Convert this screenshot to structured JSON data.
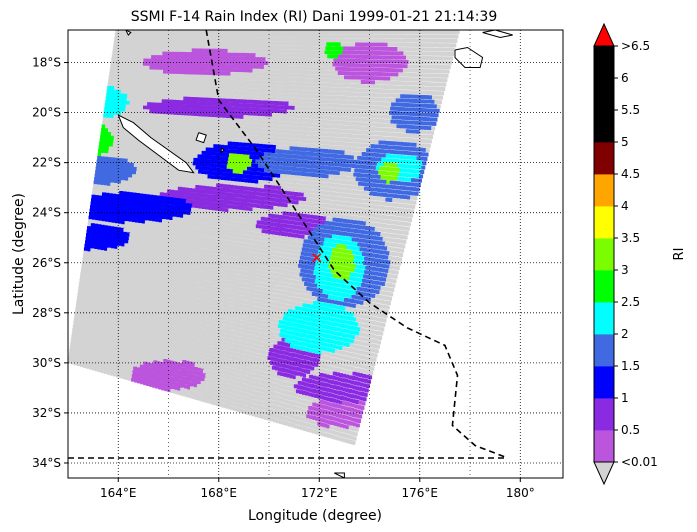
{
  "chart_data": {
    "type": "heatmap",
    "title": "SSMI F-14 Rain Index (RI) Dani 1999-01-21 21:14:39",
    "xlabel": "Longitude (degree)",
    "ylabel": "Latitude (degree)",
    "xlim": [
      162.0,
      181.7
    ],
    "ylim": [
      -34.6,
      -16.7
    ],
    "x_ticks": [
      {
        "value": 164,
        "label": "164°E"
      },
      {
        "value": 168,
        "label": "168°E"
      },
      {
        "value": 172,
        "label": "172°E"
      },
      {
        "value": 176,
        "label": "176°E"
      },
      {
        "value": 180,
        "label": "180°"
      }
    ],
    "y_ticks": [
      {
        "value": -18,
        "label": "18°S"
      },
      {
        "value": -20,
        "label": "20°S"
      },
      {
        "value": -22,
        "label": "22°S"
      },
      {
        "value": -24,
        "label": "24°S"
      },
      {
        "value": -26,
        "label": "26°S"
      },
      {
        "value": -28,
        "label": "28°S"
      },
      {
        "value": -30,
        "label": "30°S"
      },
      {
        "value": -32,
        "label": "32°S"
      },
      {
        "value": -34,
        "label": "34°S"
      }
    ],
    "grid": "dotted",
    "swath": {
      "corners": [
        [
          163.9,
          -16.7
        ],
        [
          177.6,
          -16.7
        ],
        [
          173.4,
          -33.3
        ],
        [
          162.0,
          -30.0
        ]
      ],
      "background_value": "<0.01"
    },
    "rain_regions": [
      {
        "center": [
          163.6,
          -19.6
        ],
        "radius": [
          0.8,
          0.6
        ],
        "level": 2.25
      },
      {
        "center": [
          162.9,
          -21.1
        ],
        "radius": [
          0.9,
          0.7
        ],
        "level": 2.75
      },
      {
        "center": [
          163.2,
          -22.3
        ],
        "radius": [
          1.5,
          0.6
        ],
        "level": 1.75
      },
      {
        "center": [
          164.5,
          -23.8
        ],
        "radius": [
          2.5,
          0.6
        ],
        "level": 1.25
      },
      {
        "center": [
          163.0,
          -25.0
        ],
        "radius": [
          1.5,
          0.5
        ],
        "level": 1.25
      },
      {
        "center": [
          169.0,
          -22.0
        ],
        "radius": [
          2.0,
          0.8
        ],
        "level": 1.25
      },
      {
        "center": [
          168.8,
          -22.0
        ],
        "radius": [
          0.5,
          0.4
        ],
        "level": 3.25
      },
      {
        "center": [
          171.5,
          -22.0
        ],
        "radius": [
          2.0,
          0.6
        ],
        "level": 1.75
      },
      {
        "center": [
          173.0,
          -26.0
        ],
        "radius": [
          1.8,
          1.8
        ],
        "level": 1.75
      },
      {
        "center": [
          172.8,
          -26.2
        ],
        "radius": [
          1.0,
          1.3
        ],
        "level": 2.25
      },
      {
        "center": [
          172.9,
          -26.0
        ],
        "radius": [
          0.5,
          0.7
        ],
        "level": 3.25
      },
      {
        "center": [
          172.0,
          -28.6
        ],
        "radius": [
          1.6,
          1.0
        ],
        "level": 2.25
      },
      {
        "center": [
          175.0,
          -22.3
        ],
        "radius": [
          1.6,
          1.2
        ],
        "level": 1.75
      },
      {
        "center": [
          175.2,
          -22.2
        ],
        "radius": [
          0.9,
          0.6
        ],
        "level": 2.25
      },
      {
        "center": [
          174.8,
          -22.4
        ],
        "radius": [
          0.4,
          0.4
        ],
        "level": 3.25
      },
      {
        "center": [
          175.8,
          -20.0
        ],
        "radius": [
          1.0,
          0.8
        ],
        "level": 1.75
      },
      {
        "center": [
          174.0,
          -18.0
        ],
        "radius": [
          1.5,
          0.8
        ],
        "level": 0.25
      },
      {
        "center": [
          172.6,
          -17.5
        ],
        "radius": [
          0.4,
          0.3
        ],
        "level": 2.75
      },
      {
        "center": [
          167.5,
          -18.0
        ],
        "radius": [
          2.5,
          0.5
        ],
        "level": 0.25
      },
      {
        "center": [
          168.0,
          -19.8
        ],
        "radius": [
          3.0,
          0.4
        ],
        "level": 0.75
      },
      {
        "center": [
          168.5,
          -23.4
        ],
        "radius": [
          3.0,
          0.5
        ],
        "level": 0.75
      },
      {
        "center": [
          165.0,
          -32.0
        ],
        "radius": [
          3.0,
          0.7
        ],
        "level": 0.25
      },
      {
        "center": [
          166.0,
          -30.5
        ],
        "radius": [
          1.5,
          0.6
        ],
        "level": 0.25
      },
      {
        "center": [
          171.0,
          -29.8
        ],
        "radius": [
          1.0,
          0.8
        ],
        "level": 0.75
      },
      {
        "center": [
          173.0,
          -31.0
        ],
        "radius": [
          2.0,
          0.6
        ],
        "level": 0.75
      },
      {
        "center": [
          173.0,
          -32.0
        ],
        "radius": [
          1.5,
          0.6
        ],
        "level": 0.25
      },
      {
        "center": [
          171.0,
          -24.5
        ],
        "radius": [
          1.5,
          0.5
        ],
        "level": 0.75
      }
    ],
    "track": [
      [
        167.5,
        -16.7
      ],
      [
        168.0,
        -19.5
      ],
      [
        169.5,
        -21.5
      ],
      [
        171.0,
        -23.8
      ],
      [
        172.6,
        -26.3
      ],
      [
        174.0,
        -27.6
      ],
      [
        175.5,
        -28.6
      ],
      [
        177.0,
        -29.3
      ],
      [
        177.5,
        -30.5
      ],
      [
        177.3,
        -32.5
      ],
      [
        178.2,
        -33.3
      ],
      [
        179.5,
        -33.8
      ]
    ],
    "track_west": [
      [
        162.0,
        -33.8
      ],
      [
        179.5,
        -33.8
      ]
    ],
    "storm_center": [
      171.9,
      -25.8
    ],
    "coastlines": [
      [
        [
          164.0,
          -20.1
        ],
        [
          164.6,
          -20.4
        ],
        [
          165.3,
          -21.0
        ],
        [
          166.0,
          -21.5
        ],
        [
          166.7,
          -22.0
        ],
        [
          167.0,
          -22.4
        ],
        [
          166.4,
          -22.3
        ],
        [
          165.6,
          -21.7
        ],
        [
          164.8,
          -21.1
        ],
        [
          164.2,
          -20.6
        ],
        [
          164.0,
          -20.1
        ]
      ],
      [
        [
          167.2,
          -20.8
        ],
        [
          167.5,
          -20.9
        ],
        [
          167.4,
          -21.2
        ],
        [
          167.1,
          -21.1
        ],
        [
          167.2,
          -20.8
        ]
      ],
      [
        [
          168.1,
          -21.4
        ],
        [
          168.2,
          -21.5
        ],
        [
          168.1,
          -21.6
        ],
        [
          168.1,
          -21.4
        ]
      ],
      [
        [
          177.4,
          -17.5
        ],
        [
          177.9,
          -17.4
        ],
        [
          178.5,
          -17.8
        ],
        [
          178.4,
          -18.2
        ],
        [
          177.8,
          -18.2
        ],
        [
          177.4,
          -17.8
        ],
        [
          177.4,
          -17.5
        ]
      ],
      [
        [
          178.5,
          -16.8
        ],
        [
          179.0,
          -16.7
        ],
        [
          179.7,
          -16.9
        ],
        [
          179.2,
          -17.0
        ],
        [
          178.5,
          -16.8
        ]
      ],
      [
        [
          164.3,
          -16.7
        ],
        [
          164.5,
          -16.8
        ],
        [
          164.4,
          -16.9
        ],
        [
          164.3,
          -16.7
        ]
      ],
      [
        [
          172.6,
          -34.4
        ],
        [
          173.0,
          -34.4
        ],
        [
          173.0,
          -34.6
        ],
        [
          172.6,
          -34.4
        ]
      ]
    ],
    "colorbar": {
      "label": "RI",
      "levels": [
        0.01,
        0.5,
        1,
        1.5,
        2,
        2.5,
        3,
        3.5,
        4,
        4.5,
        5,
        5.5,
        6,
        6.5
      ],
      "colors": [
        "#bb55dd",
        "#8a2be2",
        "#0000ff",
        "#4169e1",
        "#00ffff",
        "#00ff00",
        "#7cfc00",
        "#ffff00",
        "#ffa500",
        "#800000",
        "#000000",
        "#000000",
        "#000000"
      ],
      "under_color": "#d3d3d3",
      "over_color": "#ff0000",
      "tick_labels": [
        "<0.01",
        "0.5",
        "1",
        "1.5",
        "2",
        "2.5",
        "3",
        "3.5",
        "4",
        "4.5",
        "5",
        "5.5",
        "6",
        ">6.5"
      ]
    }
  }
}
